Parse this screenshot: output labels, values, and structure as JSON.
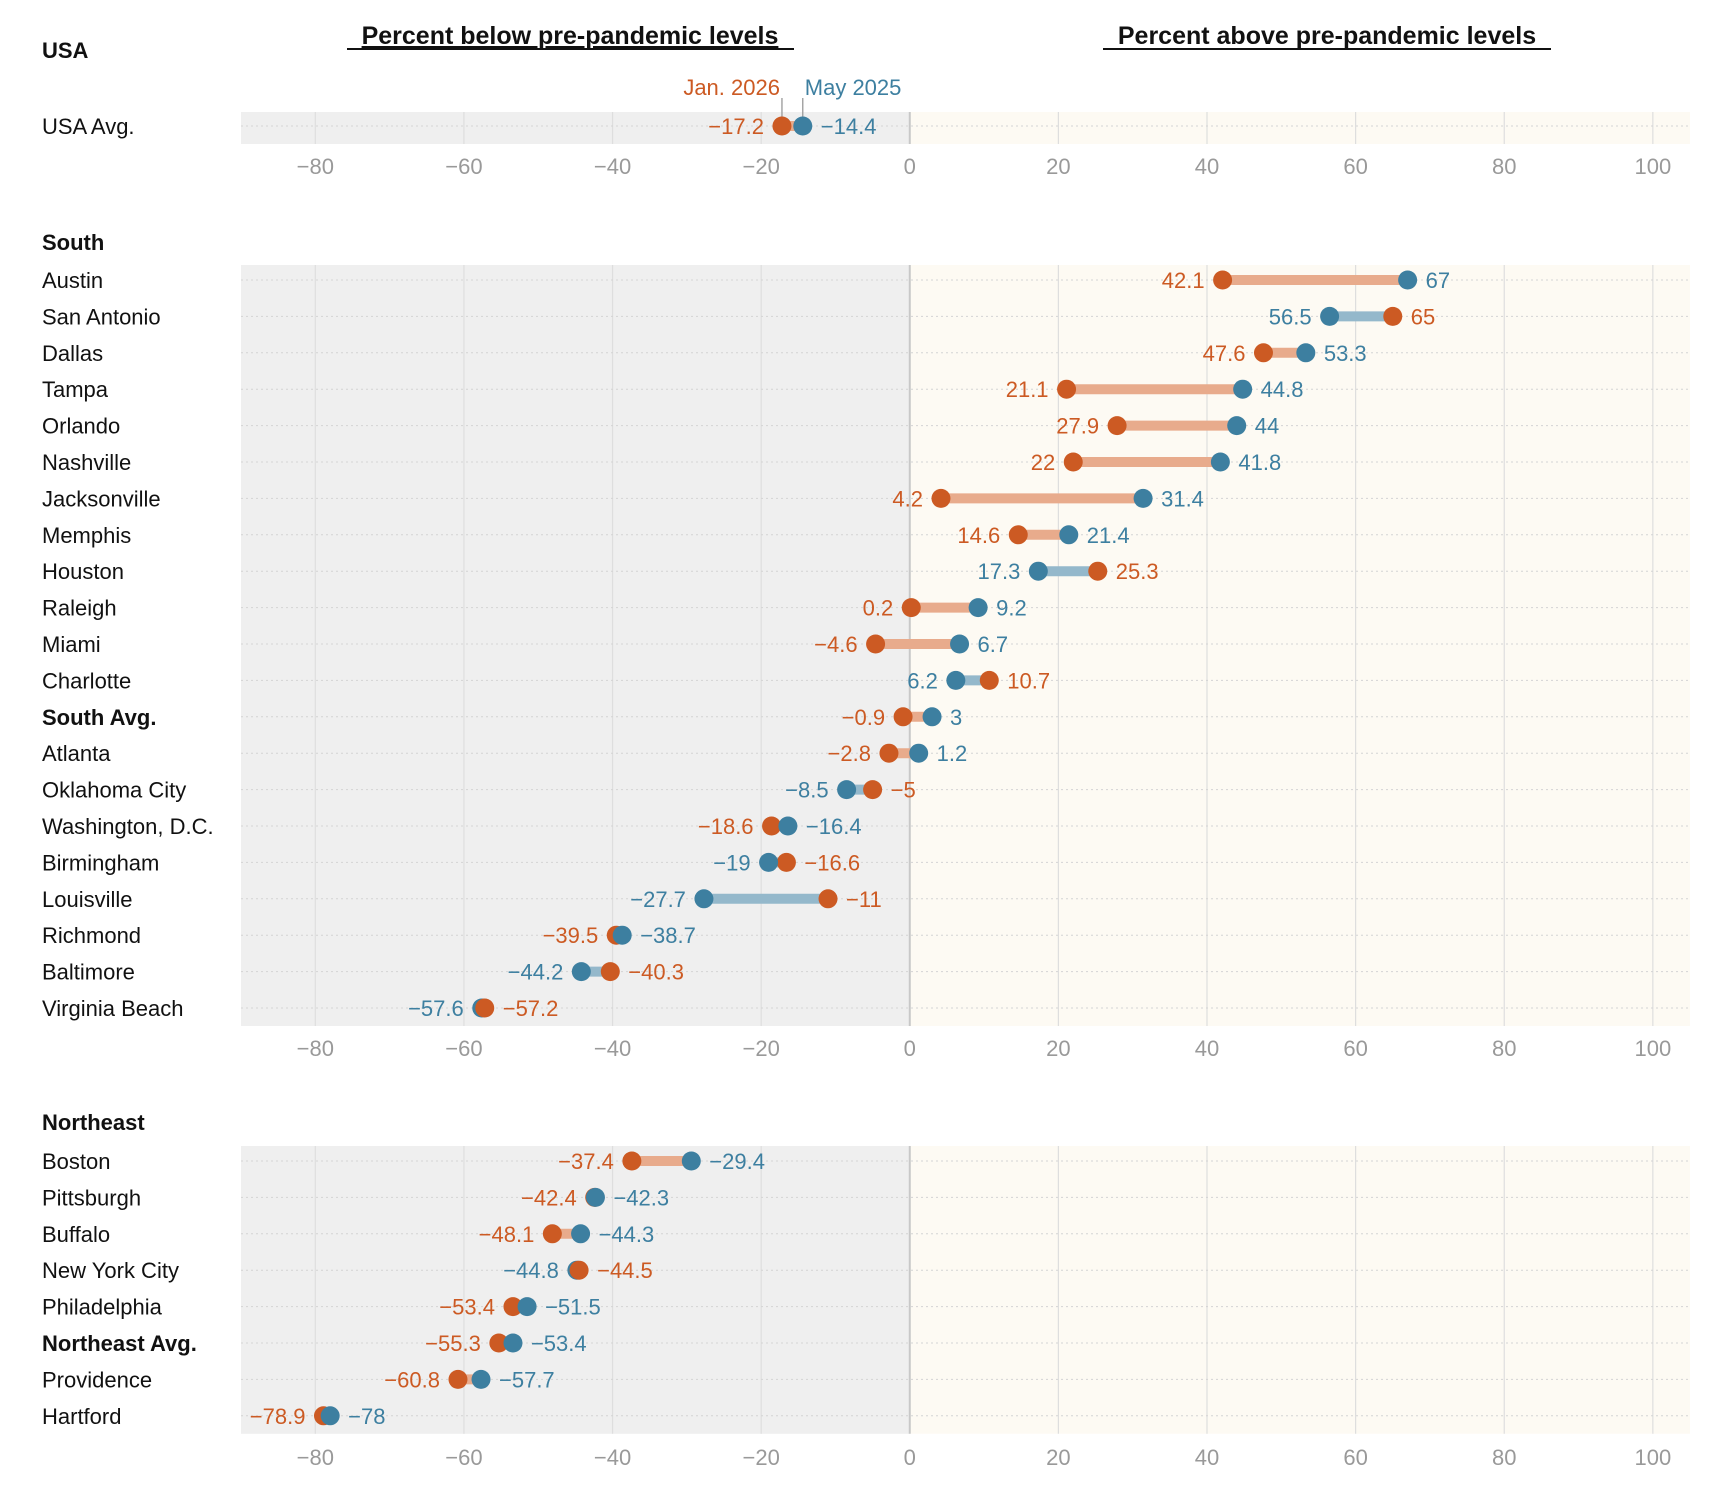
{
  "colors": {
    "jan": "#cc5a23",
    "may": "#3d7fa0",
    "jan_line": "#e8ab8c",
    "may_line": "#94b8cb",
    "below_bg": "#efefef",
    "above_bg": "#fdfaf3",
    "label": "#111111",
    "tick": "#999999"
  },
  "chart_data": {
    "type": "dumbbell",
    "header_below": "Percent below pre-pandemic levels",
    "header_above": "Percent above pre-pandemic levels",
    "legend": {
      "jan": "Jan. 2026",
      "may": "May 2025"
    },
    "xlim": [
      -90,
      105
    ],
    "ticks": [
      -80,
      -60,
      -40,
      -20,
      0,
      20,
      40,
      60,
      80,
      100
    ],
    "tick_labels": [
      "−80",
      "−60",
      "−40",
      "−20",
      "0",
      "20",
      "40",
      "60",
      "80",
      "100"
    ],
    "groups": [
      {
        "name": "USA",
        "rows": [
          {
            "label": "USA Avg.",
            "may": -14.4,
            "jan": -17.2,
            "may_text": "−14.4",
            "jan_text": "−17.2",
            "bold": false
          }
        ]
      },
      {
        "name": "South",
        "rows": [
          {
            "label": "Austin",
            "may": 67,
            "jan": 42.1,
            "may_text": "67",
            "jan_text": "42.1",
            "bold": false
          },
          {
            "label": "San Antonio",
            "may": 56.5,
            "jan": 65,
            "may_text": "56.5",
            "jan_text": "65",
            "bold": false
          },
          {
            "label": "Dallas",
            "may": 53.3,
            "jan": 47.6,
            "may_text": "53.3",
            "jan_text": "47.6",
            "bold": false
          },
          {
            "label": "Tampa",
            "may": 44.8,
            "jan": 21.1,
            "may_text": "44.8",
            "jan_text": "21.1",
            "bold": false
          },
          {
            "label": "Orlando",
            "may": 44,
            "jan": 27.9,
            "may_text": "44",
            "jan_text": "27.9",
            "bold": false
          },
          {
            "label": "Nashville",
            "may": 41.8,
            "jan": 22,
            "may_text": "41.8",
            "jan_text": "22",
            "bold": false
          },
          {
            "label": "Jacksonville",
            "may": 31.4,
            "jan": 4.2,
            "may_text": "31.4",
            "jan_text": "4.2",
            "bold": false
          },
          {
            "label": "Memphis",
            "may": 21.4,
            "jan": 14.6,
            "may_text": "21.4",
            "jan_text": "14.6",
            "bold": false
          },
          {
            "label": "Houston",
            "may": 17.3,
            "jan": 25.3,
            "may_text": "17.3",
            "jan_text": "25.3",
            "bold": false
          },
          {
            "label": "Raleigh",
            "may": 9.2,
            "jan": 0.2,
            "may_text": "9.2",
            "jan_text": "0.2",
            "bold": false
          },
          {
            "label": "Miami",
            "may": 6.7,
            "jan": -4.6,
            "may_text": "6.7",
            "jan_text": "−4.6",
            "bold": false
          },
          {
            "label": "Charlotte",
            "may": 6.2,
            "jan": 10.7,
            "may_text": "6.2",
            "jan_text": "10.7",
            "bold": false
          },
          {
            "label": "South Avg.",
            "may": 3,
            "jan": -0.9,
            "may_text": "3",
            "jan_text": "−0.9",
            "bold": true
          },
          {
            "label": "Atlanta",
            "may": 1.2,
            "jan": -2.8,
            "may_text": "1.2",
            "jan_text": "−2.8",
            "bold": false
          },
          {
            "label": "Oklahoma City",
            "may": -8.5,
            "jan": -5,
            "may_text": "−8.5",
            "jan_text": "−5",
            "bold": false
          },
          {
            "label": "Washington, D.C.",
            "may": -16.4,
            "jan": -18.6,
            "may_text": "−16.4",
            "jan_text": "−18.6",
            "bold": false
          },
          {
            "label": "Birmingham",
            "may": -19,
            "jan": -16.6,
            "may_text": "−19",
            "jan_text": "−16.6",
            "bold": false
          },
          {
            "label": "Louisville",
            "may": -27.7,
            "jan": -11,
            "may_text": "−27.7",
            "jan_text": "−11",
            "bold": false
          },
          {
            "label": "Richmond",
            "may": -38.7,
            "jan": -39.5,
            "may_text": "−38.7",
            "jan_text": "−39.5",
            "bold": false
          },
          {
            "label": "Baltimore",
            "may": -44.2,
            "jan": -40.3,
            "may_text": "−44.2",
            "jan_text": "−40.3",
            "bold": false
          },
          {
            "label": "Virginia Beach",
            "may": -57.6,
            "jan": -57.2,
            "may_text": "−57.6",
            "jan_text": "−57.2",
            "bold": false
          }
        ]
      },
      {
        "name": "Northeast",
        "rows": [
          {
            "label": "Boston",
            "may": -29.4,
            "jan": -37.4,
            "may_text": "−29.4",
            "jan_text": "−37.4",
            "bold": false
          },
          {
            "label": "Pittsburgh",
            "may": -42.3,
            "jan": -42.4,
            "may_text": "−42.3",
            "jan_text": "−42.4",
            "bold": false
          },
          {
            "label": "Buffalo",
            "may": -44.3,
            "jan": -48.1,
            "may_text": "−44.3",
            "jan_text": "−48.1",
            "bold": false
          },
          {
            "label": "New York City",
            "may": -44.8,
            "jan": -44.5,
            "may_text": "−44.8",
            "jan_text": "−44.5",
            "bold": false
          },
          {
            "label": "Philadelphia",
            "may": -51.5,
            "jan": -53.4,
            "may_text": "−51.5",
            "jan_text": "−53.4",
            "bold": false
          },
          {
            "label": "Northeast Avg.",
            "may": -53.4,
            "jan": -55.3,
            "may_text": "−53.4",
            "jan_text": "−55.3",
            "bold": true
          },
          {
            "label": "Providence",
            "may": -57.7,
            "jan": -60.8,
            "may_text": "−57.7",
            "jan_text": "−60.8",
            "bold": false
          },
          {
            "label": "Hartford",
            "may": -78,
            "jan": -78.9,
            "may_text": "−78",
            "jan_text": "−78.9",
            "bold": false
          }
        ]
      }
    ]
  }
}
